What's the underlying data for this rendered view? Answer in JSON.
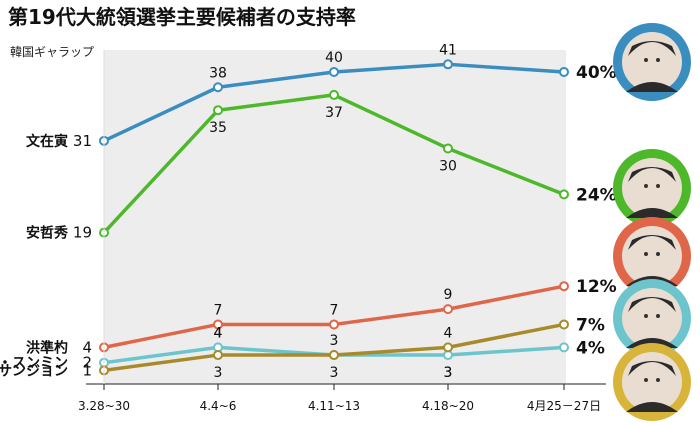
{
  "chart_data": {
    "type": "line",
    "title": "第19代大統領選挙主要候補者の支持率",
    "subtitle": "韓国ギャラップ",
    "categories": [
      "3.28~30",
      "4.4~6",
      "4.11~13",
      "4.18~20",
      "4月25－27日"
    ],
    "ylim": [
      0,
      43
    ],
    "series": [
      {
        "name": "文在寅",
        "color": "#3a8dbf",
        "values": [
          31,
          38,
          40,
          41,
          40
        ],
        "start_label": "31",
        "point_labels": [
          "",
          "38",
          "40",
          "41",
          ""
        ],
        "label_pos": "above",
        "end_label": "40%",
        "portrait_ring": "#3a8dbf"
      },
      {
        "name": "安哲秀",
        "color": "#4cb82a",
        "values": [
          19,
          35,
          37,
          30,
          24
        ],
        "start_label": "19",
        "point_labels": [
          "",
          "35",
          "37",
          "30",
          ""
        ],
        "label_pos": "below",
        "end_label": "24%",
        "portrait_ring": "#4cb82a"
      },
      {
        "name": "洪準杓",
        "color": "#e0664a",
        "values": [
          4,
          7,
          7,
          9,
          12
        ],
        "start_label": "4",
        "point_labels": [
          "",
          "7",
          "7",
          "9",
          ""
        ],
        "label_pos": "above",
        "end_label": "12%",
        "portrait_ring": "#e0664a"
      },
      {
        "name": "ユ・スンミン",
        "color": "#6cc4cc",
        "values": [
          2,
          4,
          3,
          3,
          4
        ],
        "start_label": "2",
        "point_labels": [
          "",
          "4",
          "3",
          "3",
          ""
        ],
        "label_pos": "mixed",
        "end_label": "4%",
        "portrait_ring": "#6cc4cc"
      },
      {
        "name": "シム・サンジョン",
        "color": "#a88a2a",
        "values": [
          1,
          3,
          3,
          4,
          7
        ],
        "start_label": "1",
        "point_labels": [
          "",
          "",
          "",
          "4",
          ""
        ],
        "label_pos": "above",
        "end_label": "7%",
        "portrait_ring": "#d8b43a"
      }
    ],
    "extra_labels": [
      {
        "text": "3",
        "series": 3,
        "index": 2,
        "pos": "above"
      },
      {
        "text": "3",
        "series": 4,
        "index": 1,
        "pos": "below"
      },
      {
        "text": "3",
        "series": 3,
        "index": 3,
        "pos": "below"
      },
      {
        "text": "4",
        "series": 3,
        "index": 1,
        "pos": "above"
      }
    ],
    "grid": false,
    "legend": "none"
  }
}
